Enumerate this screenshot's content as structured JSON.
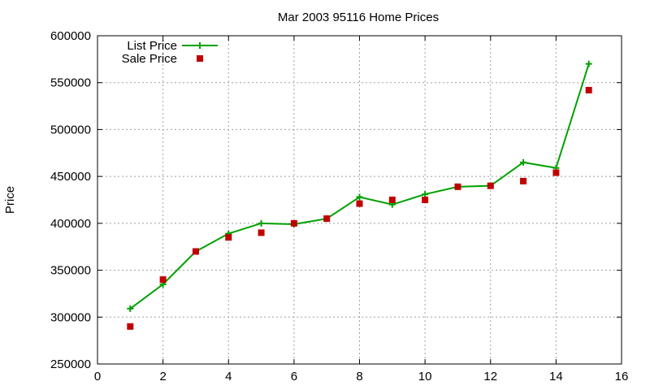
{
  "chart_data": {
    "type": "line",
    "title": "Mar 2003 95116 Home Prices",
    "xlabel": "",
    "ylabel": "Price",
    "xlim": [
      0,
      16
    ],
    "ylim": [
      250000,
      600000
    ],
    "xticks": [
      0,
      2,
      4,
      6,
      8,
      10,
      12,
      14,
      16
    ],
    "yticks": [
      250000,
      300000,
      350000,
      400000,
      450000,
      500000,
      550000,
      600000
    ],
    "grid": true,
    "legend_position": "top-left",
    "series": [
      {
        "name": "List Price",
        "style": "line+plus",
        "color": "#00a000",
        "x": [
          1,
          2,
          3,
          4,
          5,
          6,
          7,
          8,
          9,
          10,
          11,
          12,
          13,
          14,
          15
        ],
        "y": [
          309000,
          335000,
          370000,
          389000,
          400000,
          399000,
          405000,
          428000,
          420000,
          431000,
          439000,
          440000,
          465000,
          459000,
          570000
        ]
      },
      {
        "name": "Sale Price",
        "style": "square-points",
        "color": "#c00000",
        "x": [
          1,
          2,
          3,
          4,
          5,
          6,
          7,
          8,
          9,
          10,
          11,
          12,
          13,
          14,
          15
        ],
        "y": [
          290000,
          340000,
          370000,
          385000,
          390000,
          400000,
          405000,
          421000,
          425000,
          425000,
          439000,
          440000,
          445000,
          454000,
          542000
        ]
      }
    ]
  }
}
